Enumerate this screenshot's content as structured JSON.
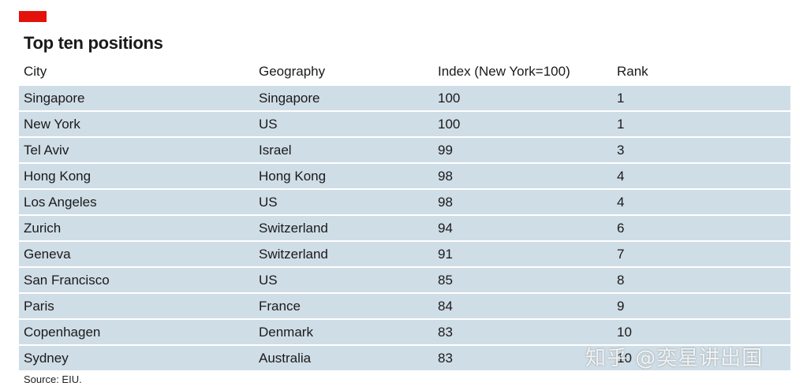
{
  "title": "Top ten positions",
  "accent_color": "#e3120b",
  "row_color": "#cfdde6",
  "columns": [
    "City",
    "Geography",
    "Index (New York=100)",
    "Rank"
  ],
  "rows": [
    [
      "Singapore",
      "Singapore",
      "100",
      "1"
    ],
    [
      "New York",
      "US",
      "100",
      "1"
    ],
    [
      "Tel Aviv",
      "Israel",
      "99",
      "3"
    ],
    [
      "Hong Kong",
      "Hong Kong",
      "98",
      "4"
    ],
    [
      "Los Angeles",
      "US",
      "98",
      "4"
    ],
    [
      "Zurich",
      "Switzerland",
      "94",
      "6"
    ],
    [
      "Geneva",
      "Switzerland",
      "91",
      "7"
    ],
    [
      "San Francisco",
      "US",
      "85",
      "8"
    ],
    [
      "Paris",
      "France",
      "84",
      "9"
    ],
    [
      "Copenhagen",
      "Denmark",
      "83",
      "10"
    ],
    [
      "Sydney",
      "Australia",
      "83",
      "10"
    ]
  ],
  "source": "Source: EIU.",
  "watermark": "知乎 @奕星讲出国"
}
